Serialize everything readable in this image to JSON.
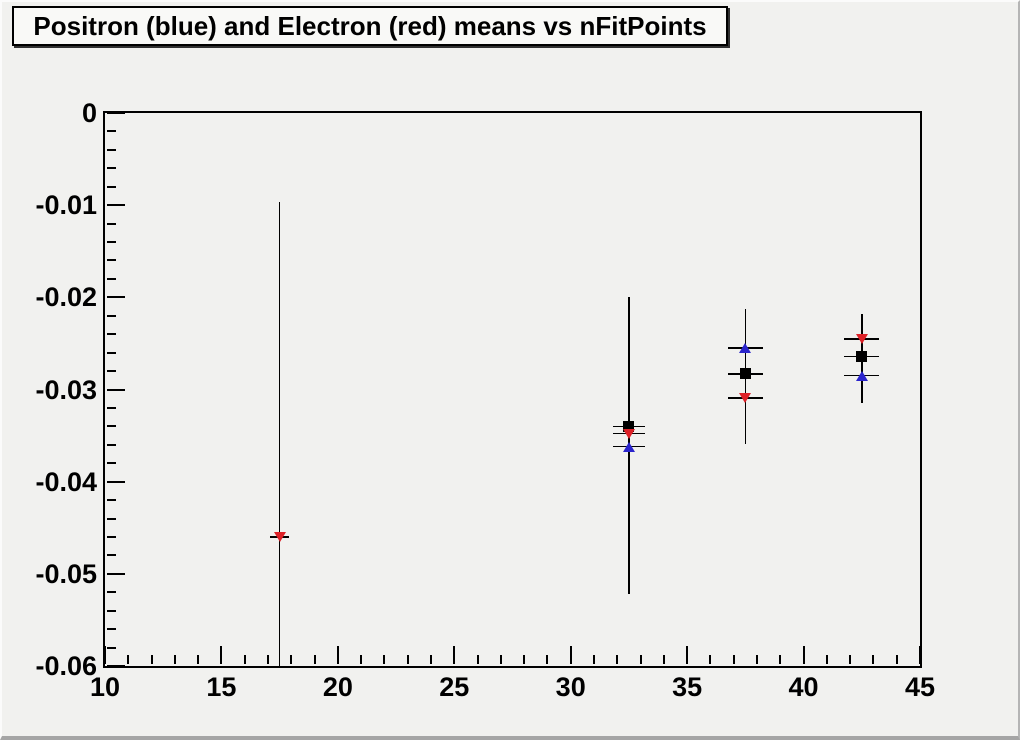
{
  "colors": {
    "positron": "#2a24cc",
    "electron": "#dd2127",
    "black_square": "#000000",
    "frame": "#000000",
    "background": "#f1f1ef"
  },
  "chart_data": {
    "type": "scatter",
    "title": "Positron (blue) and Electron (red) means vs nFitPoints",
    "xlabel": "",
    "ylabel": "",
    "legend": [
      {
        "series": "positron",
        "label": "Positron",
        "color": "#2a24cc",
        "marker": "triangle-up"
      },
      {
        "series": "electron",
        "label": "Electron",
        "color": "#dd2127",
        "marker": "triangle-down"
      },
      {
        "series": "black_square",
        "label": "",
        "color": "#000000",
        "marker": "square"
      }
    ],
    "x_axis": {
      "min": 10,
      "max": 45,
      "major_ticks": [
        10,
        15,
        20,
        25,
        30,
        35,
        40,
        45
      ],
      "tick_labels": [
        "10",
        "15",
        "20",
        "25",
        "30",
        "35",
        "40",
        "45"
      ],
      "minor_step": 1
    },
    "y_axis": {
      "min": -0.06,
      "max": 0,
      "major_ticks": [
        0,
        -0.01,
        -0.02,
        -0.03,
        -0.04,
        -0.05,
        -0.06
      ],
      "tick_labels": [
        "0",
        "-0.01",
        "-0.02",
        "-0.03",
        "-0.04",
        "-0.05",
        "-0.06"
      ],
      "minor_step": 0.002
    },
    "grid": false,
    "clusters": [
      {
        "x": 17.5,
        "xerr": 0.4,
        "err_top": -0.0097,
        "err_bottom": -0.06,
        "points": [
          {
            "series": "electron",
            "marker": "triangle-down",
            "y": -0.046
          }
        ]
      },
      {
        "x": 32.5,
        "xerr": 0.7,
        "err_top": -0.02,
        "err_bottom": -0.0522,
        "points": [
          {
            "series": "black_square",
            "marker": "square",
            "y": -0.034
          },
          {
            "series": "electron",
            "marker": "triangle-down",
            "y": -0.0348
          },
          {
            "series": "positron",
            "marker": "triangle-up",
            "y": -0.0362
          }
        ]
      },
      {
        "x": 37.5,
        "xerr": 0.75,
        "err_top": -0.0213,
        "err_bottom": -0.0359,
        "points": [
          {
            "series": "positron",
            "marker": "triangle-up",
            "y": -0.0255
          },
          {
            "series": "black_square",
            "marker": "square",
            "y": -0.0283
          },
          {
            "series": "electron",
            "marker": "triangle-down",
            "y": -0.0309
          }
        ]
      },
      {
        "x": 42.5,
        "xerr": 0.75,
        "err_top": -0.0218,
        "err_bottom": -0.0315,
        "points": [
          {
            "series": "electron",
            "marker": "triangle-down",
            "y": -0.0245
          },
          {
            "series": "black_square",
            "marker": "square",
            "y": -0.0264
          },
          {
            "series": "positron",
            "marker": "triangle-up",
            "y": -0.0285
          }
        ]
      }
    ]
  }
}
